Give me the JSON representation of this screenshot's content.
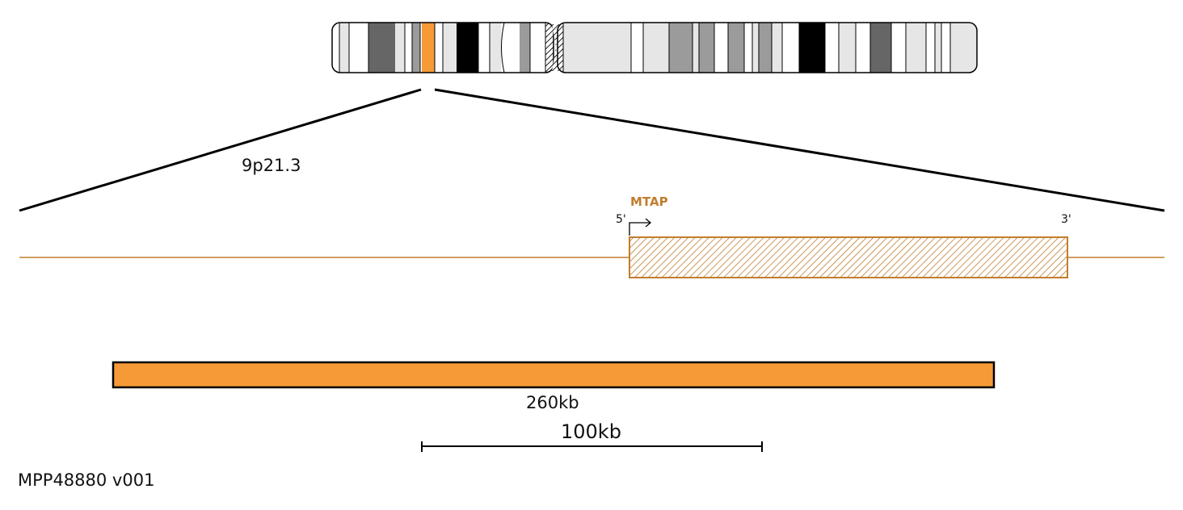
{
  "chromosome": {
    "band_label": "9p21.3",
    "highlight_color": "#f59a36",
    "stain_colors": {
      "gneg": "#ffffff",
      "gpos25": "#e6e6e6",
      "gpos50": "#9b9b9b",
      "gpos75": "#666666",
      "gpos100": "#000000",
      "acen": "hatched",
      "highlight": "#f59a36"
    }
  },
  "gene": {
    "name": "MTAP",
    "color": "#c17d2e",
    "five_prime_label": "5'",
    "three_prime_label": "3'",
    "direction": "forward",
    "arrow_icon": "right-arrow-icon"
  },
  "region": {
    "label": "260kb",
    "color": "#f59a36"
  },
  "scale_bar": {
    "label": "100kb"
  },
  "footer": {
    "probe_id": "MPP48880 v001"
  }
}
